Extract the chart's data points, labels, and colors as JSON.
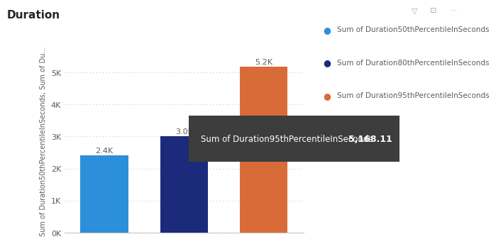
{
  "title": "Duration",
  "bar_values": [
    2400,
    3000,
    5168.11
  ],
  "bar_labels": [
    "2.4K",
    "3.0K",
    "5.2K"
  ],
  "bar_colors": [
    "#2B8FD9",
    "#1B2A7B",
    "#D96B38"
  ],
  "legend_labels": [
    "Sum of Duration50thPercentileInSeconds",
    "Sum of Duration80thPercentileInSeconds",
    "Sum of Duration95thPercentileInSeconds"
  ],
  "legend_colors": [
    "#2B8FD9",
    "#1B2A7B",
    "#D96B38"
  ],
  "ylabel": "Sum of Duration50thPercentileInSeconds, Sum of Du...",
  "yticks": [
    0,
    1000,
    2000,
    3000,
    4000,
    5000
  ],
  "ytick_labels": [
    "0K",
    "1K",
    "2K",
    "3K",
    "4K",
    "5K"
  ],
  "ylim": [
    0,
    5700
  ],
  "tooltip_text": "Sum of Duration95thPercentileInSeconds",
  "tooltip_value": "5,168.11",
  "background_color": "#FFFFFF",
  "title_color": "#252423",
  "axis_label_color": "#605E5C",
  "tick_color": "#605E5C",
  "grid_color": "#C8C6C4",
  "tooltip_bg": "#3D3D3D",
  "tooltip_text_color": "#FFFFFF",
  "bar_width": 0.6
}
